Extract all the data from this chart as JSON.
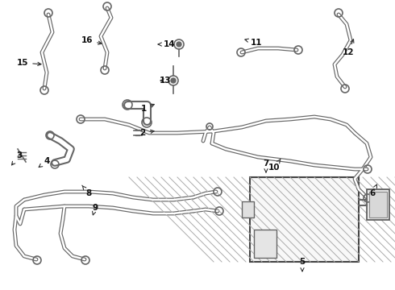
{
  "bg_color": "#ffffff",
  "line_color": "#666666",
  "line_width": 1.4,
  "label_color": "#111111",
  "label_fontsize": 7.5
}
